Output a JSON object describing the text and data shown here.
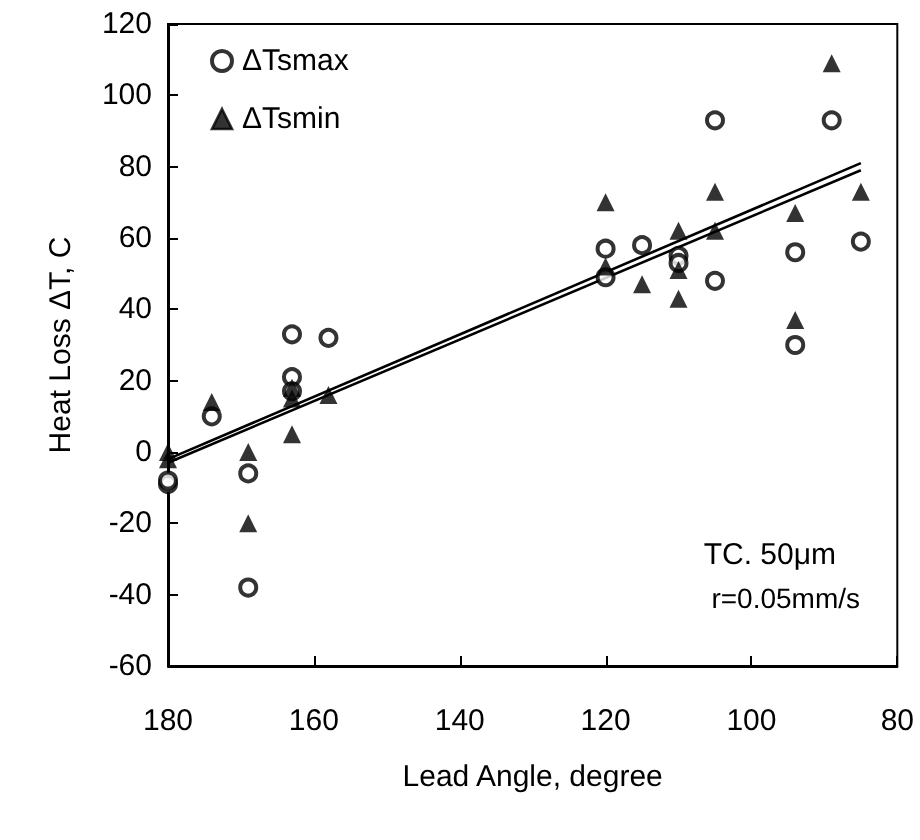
{
  "chart_data": {
    "type": "scatter",
    "xlabel": "Lead Angle, degree",
    "ylabel": "Heat Loss ΔT, C",
    "xlim": [
      180,
      80
    ],
    "xticks": [
      180,
      160,
      140,
      120,
      100,
      80
    ],
    "ylim": [
      -60,
      120
    ],
    "yticks": [
      -60,
      -40,
      -20,
      0,
      20,
      40,
      60,
      80,
      100,
      120
    ],
    "grid": false,
    "legend": "top left",
    "annotations": [
      "TC. 50μm",
      "r=0.05mm/s"
    ],
    "series": [
      {
        "name": "ΔTsmax",
        "color": "#000000",
        "marker": "circle",
        "x": [
          180,
          180,
          174,
          169,
          169,
          163,
          163,
          163,
          158,
          120,
          120,
          115,
          110,
          110,
          105,
          105,
          94,
          94,
          89,
          85
        ],
        "values": [
          -9,
          -8,
          10,
          -6,
          -38,
          33,
          21,
          17,
          32,
          57,
          49,
          58,
          55,
          53,
          93,
          48,
          56,
          30,
          93,
          59
        ]
      },
      {
        "name": "ΔTsmin",
        "color": "#000000",
        "marker": "triangle",
        "x": [
          180,
          180,
          174,
          169,
          169,
          163,
          163,
          163,
          158,
          120,
          120,
          115,
          110,
          110,
          110,
          105,
          105,
          94,
          94,
          89,
          85
        ],
        "values": [
          -2,
          0,
          14,
          0,
          -20,
          18,
          15,
          5,
          16,
          70,
          52,
          47,
          62,
          51,
          43,
          73,
          62,
          67,
          37,
          109,
          73
        ]
      },
      {
        "type": "line",
        "color": "#000000",
        "marker": "none",
        "x": [
          180,
          85
        ],
        "values": [
          -3,
          79
        ]
      },
      {
        "type": "line",
        "color": "#000000",
        "marker": "none",
        "x": [
          180,
          85
        ],
        "values": [
          -2,
          81
        ]
      }
    ]
  }
}
